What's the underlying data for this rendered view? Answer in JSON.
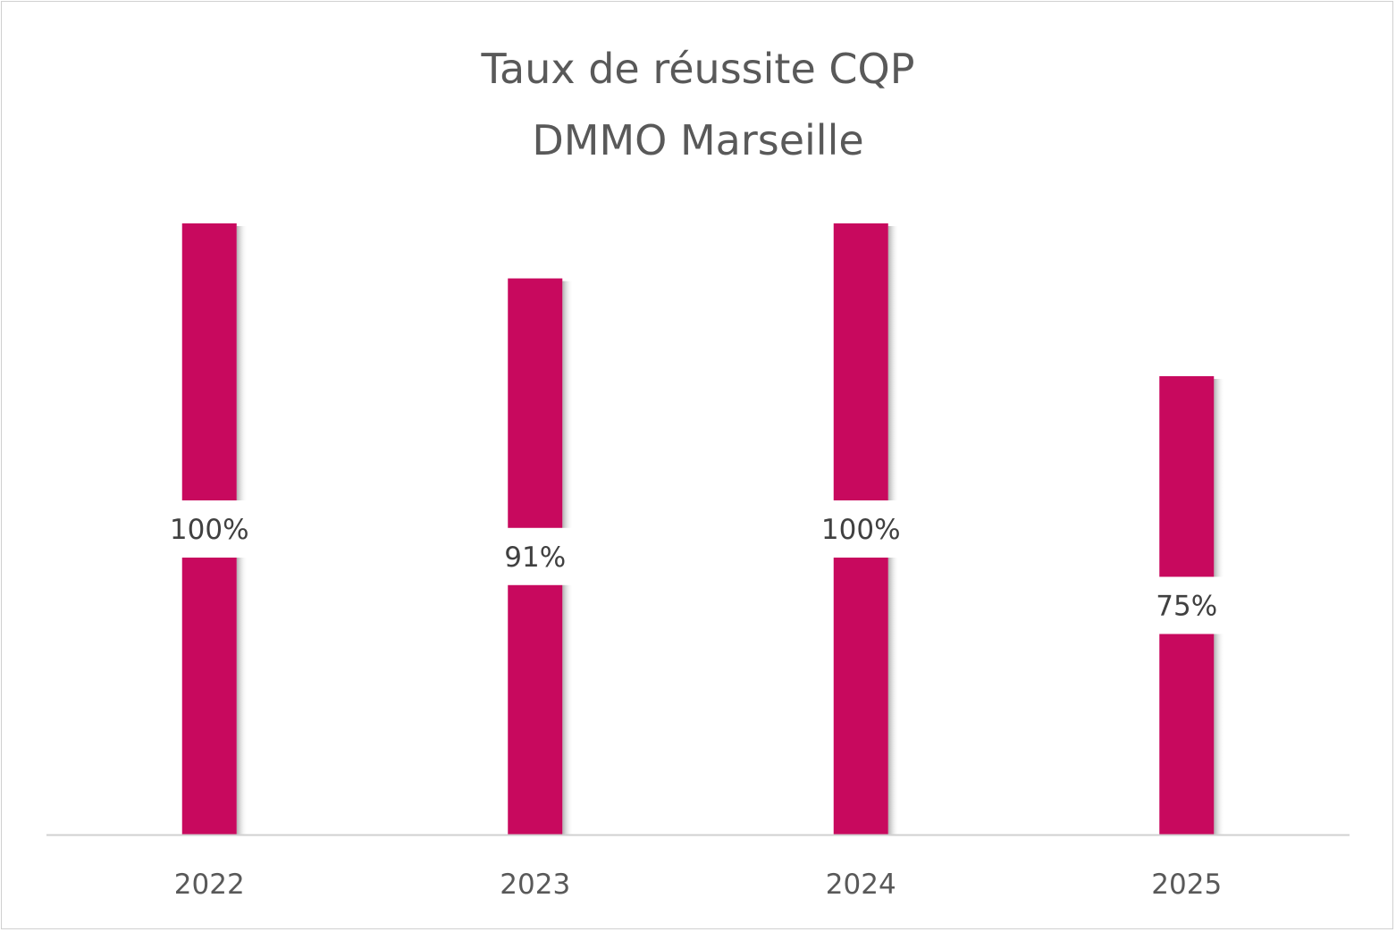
{
  "chart_data": {
    "type": "bar",
    "title": [
      "Taux de réussite CQP",
      "DMMO Marseille"
    ],
    "categories": [
      "2022",
      "2023",
      "2024",
      "2025"
    ],
    "values": [
      100,
      91,
      100,
      75
    ],
    "data_labels": [
      "100%",
      "91%",
      "100%",
      "75%"
    ],
    "ylim": [
      0,
      100
    ],
    "grid": false,
    "legend": "none",
    "bar_color": "#C8095E",
    "text_color": "#595959"
  }
}
